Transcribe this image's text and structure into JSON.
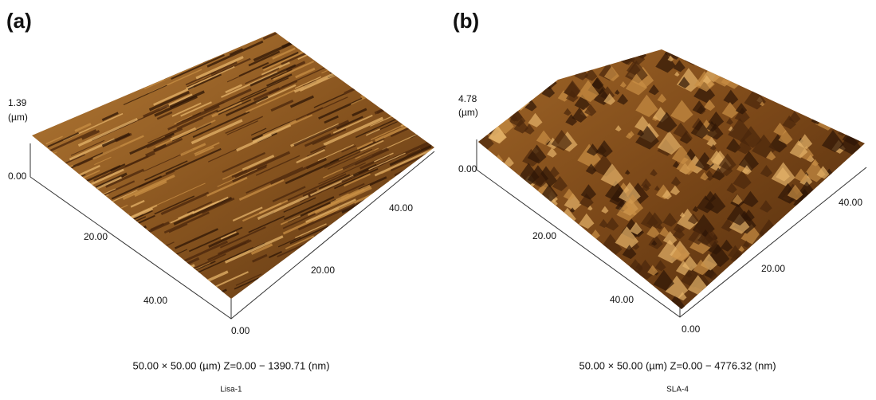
{
  "panels": [
    {
      "letter": "(a)",
      "z_max": "1.39",
      "z_unit": "(µm)",
      "z_min": "0.00",
      "x_ticks": [
        "20.00",
        "40.00"
      ],
      "origin": "0.00",
      "y_ticks": [
        "20.00",
        "40.00"
      ],
      "caption": "50.00 × 50.00 (µm)   Z=0.00 − 1390.71 (nm)",
      "sample": "Lisa-1"
    },
    {
      "letter": "(b)",
      "z_max": "4.78",
      "z_unit": "(µm)",
      "z_min": "0.00",
      "x_ticks": [
        "20.00",
        "40.00"
      ],
      "origin": "0.00",
      "y_ticks": [
        "20.00",
        "40.00"
      ],
      "caption": "50.00 × 50.00 (µm)   Z=0.00 − 4776.32 (nm)",
      "sample": "SLA-4"
    }
  ]
}
